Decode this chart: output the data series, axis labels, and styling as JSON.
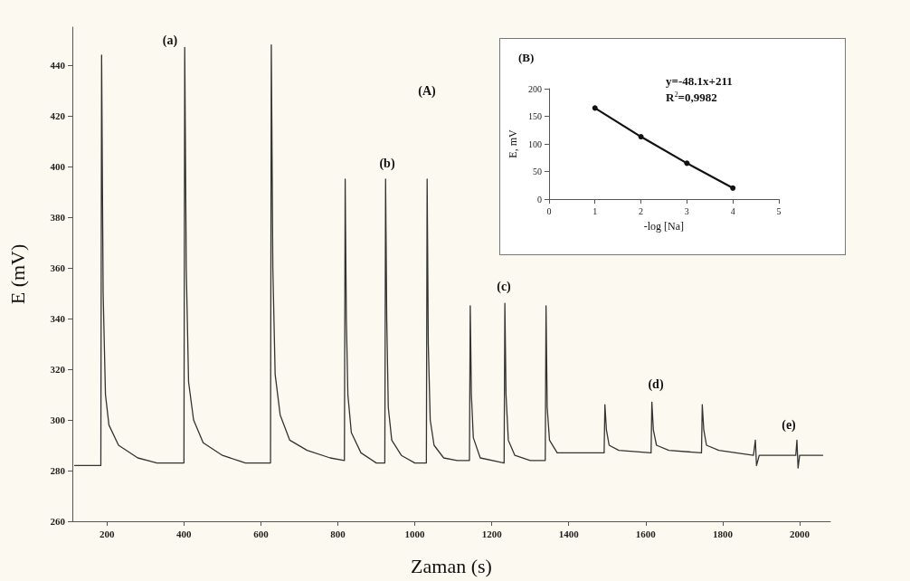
{
  "chart_data": [
    {
      "type": "line",
      "xlabel": "Zaman (s)",
      "ylabel": "E (mV)",
      "xlim": [
        110,
        2080
      ],
      "xticks": [
        200,
        400,
        600,
        800,
        1000,
        1200,
        1400,
        1600,
        1800,
        2000
      ],
      "ylim": [
        260,
        455
      ],
      "yticks": [
        260,
        280,
        300,
        320,
        340,
        360,
        380,
        400,
        420,
        440
      ],
      "grid": false,
      "marker": "none",
      "line_style": "solid",
      "series": [
        {
          "color": "#333333",
          "x": [
            116,
            184,
            186,
            190,
            196,
            205,
            230,
            280,
            330,
            400,
            402,
            406,
            412,
            425,
            450,
            500,
            560,
            625,
            627,
            631,
            637,
            650,
            675,
            720,
            780,
            817,
            819,
            822,
            826,
            835,
            860,
            900,
            922,
            924,
            927,
            931,
            940,
            965,
            1000,
            1030,
            1032,
            1035,
            1040,
            1050,
            1075,
            1110,
            1142,
            1144,
            1147,
            1152,
            1170,
            1232,
            1234,
            1237,
            1243,
            1260,
            1300,
            1339,
            1341,
            1344,
            1350,
            1370,
            1492,
            1494,
            1498,
            1505,
            1530,
            1614,
            1616,
            1620,
            1628,
            1660,
            1745,
            1747,
            1751,
            1758,
            1790,
            1880,
            1885,
            1888,
            1895,
            1990,
            1993,
            1996,
            2000,
            2060
          ],
          "values": [
            282,
            282,
            444,
            350,
            310,
            298,
            290,
            285,
            283,
            283,
            447,
            360,
            315,
            300,
            291,
            286,
            283,
            283,
            448,
            360,
            318,
            302,
            292,
            288,
            285,
            284,
            395,
            340,
            310,
            295,
            287,
            283,
            283,
            395,
            340,
            305,
            292,
            286,
            283,
            283,
            395,
            330,
            300,
            290,
            285,
            284,
            284,
            345,
            310,
            293,
            285,
            283,
            346,
            310,
            292,
            286,
            284,
            284,
            345,
            305,
            292,
            287,
            287,
            306,
            296,
            290,
            288,
            287,
            307,
            296,
            290,
            288,
            287,
            306,
            296,
            290,
            288,
            286,
            292,
            282,
            286,
            286,
            292,
            281,
            286,
            286
          ]
        }
      ],
      "annotations": [
        "(a)",
        "(b)",
        "(c)",
        "(d)",
        "(e)",
        "(A)"
      ]
    },
    {
      "type": "line",
      "xlabel": "-log [Na]",
      "ylabel": "E, mV",
      "xlim": [
        0,
        5
      ],
      "xticks": [
        0,
        1,
        2,
        3,
        4,
        5
      ],
      "ylim": [
        0,
        200
      ],
      "yticks": [
        0,
        50,
        100,
        150,
        200
      ],
      "grid": false,
      "marker": "circle",
      "line_style": "solid",
      "series": [
        {
          "color": "#111111",
          "x": [
            1,
            2,
            3,
            4
          ],
          "values": [
            165,
            113,
            65,
            20
          ]
        }
      ],
      "annotations": [
        "(B)",
        "y=-48.1x+211",
        "R$^{2}$=0,9982"
      ]
    }
  ]
}
